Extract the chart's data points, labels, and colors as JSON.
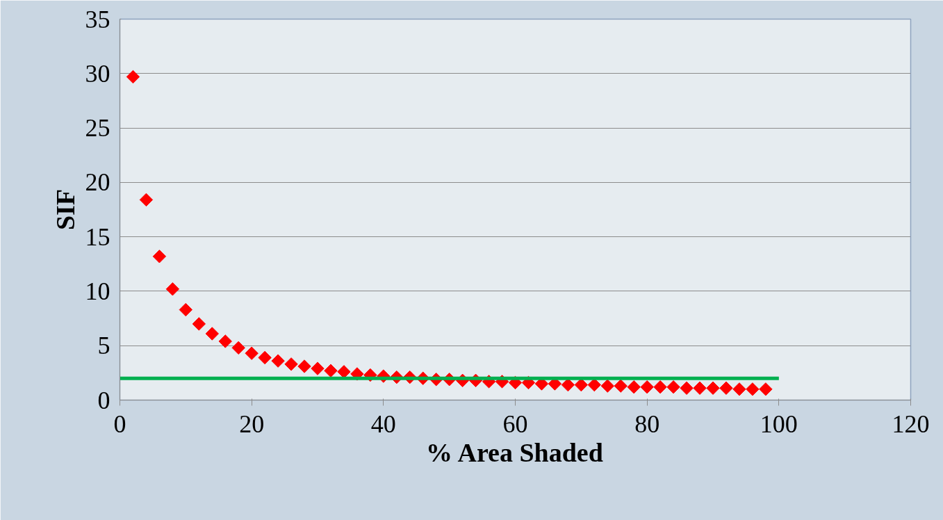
{
  "chart_data": {
    "type": "scatter",
    "xlabel": "% Area Shaded",
    "ylabel": "SIF",
    "xlim": [
      0,
      120
    ],
    "xticks": [
      0,
      20,
      40,
      60,
      80,
      100,
      120
    ],
    "ylim": [
      0,
      35
    ],
    "yticks": [
      0,
      5,
      10,
      15,
      20,
      25,
      30,
      35
    ],
    "grid": "y",
    "series": [
      {
        "marker": "diamond",
        "color": "#ff0000",
        "x": [
          2,
          4,
          6,
          8,
          10,
          12,
          14,
          16,
          18,
          20,
          22,
          24,
          26,
          28,
          30,
          32,
          34,
          36,
          38,
          40,
          42,
          44,
          46,
          48,
          50,
          52,
          54,
          56,
          58,
          60,
          62,
          64,
          66,
          68,
          70,
          72,
          74,
          76,
          78,
          80,
          82,
          84,
          86,
          88,
          90,
          92,
          94,
          96,
          98
        ],
        "values": [
          29.7,
          18.4,
          13.2,
          10.2,
          8.3,
          7.0,
          6.1,
          5.4,
          4.8,
          4.3,
          3.9,
          3.6,
          3.3,
          3.1,
          2.9,
          2.7,
          2.6,
          2.4,
          2.3,
          2.2,
          2.1,
          2.1,
          2.0,
          1.9,
          1.9,
          1.8,
          1.8,
          1.7,
          1.7,
          1.6,
          1.6,
          1.5,
          1.5,
          1.4,
          1.4,
          1.4,
          1.3,
          1.3,
          1.2,
          1.2,
          1.2,
          1.2,
          1.1,
          1.1,
          1.1,
          1.1,
          1.0,
          1.0,
          1.0
        ]
      },
      {
        "type": "line",
        "marker": "none",
        "color": "#00b050",
        "x": [
          0,
          100
        ],
        "values": [
          2,
          2
        ]
      }
    ]
  }
}
